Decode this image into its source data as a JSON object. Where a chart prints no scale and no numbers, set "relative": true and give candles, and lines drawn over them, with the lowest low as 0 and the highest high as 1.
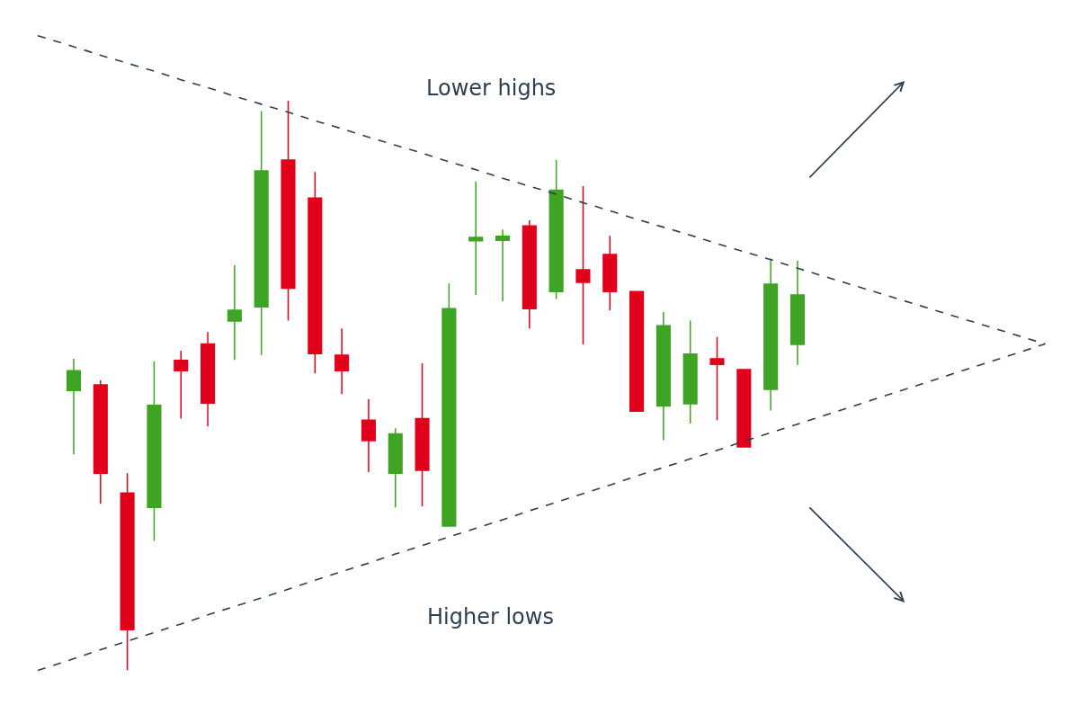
{
  "chart_data": {
    "type": "candlestick",
    "relative": true,
    "tick_labels": false,
    "categories": [
      null,
      null,
      null,
      null,
      null,
      null,
      null,
      null,
      null,
      null,
      null,
      null,
      null,
      null,
      null,
      null,
      null,
      null,
      null,
      null,
      null,
      null,
      null,
      null,
      null,
      null,
      null,
      null
    ],
    "ohlc": [
      [
        0.491,
        0.547,
        0.379,
        0.526
      ],
      [
        0.501,
        0.509,
        0.292,
        0.346
      ],
      [
        0.311,
        0.346,
        0.0,
        0.071
      ],
      [
        0.286,
        0.542,
        0.227,
        0.465
      ],
      [
        0.544,
        0.561,
        0.442,
        0.526
      ],
      [
        0.573,
        0.594,
        0.428,
        0.469
      ],
      [
        0.613,
        0.711,
        0.545,
        0.632
      ],
      [
        0.638,
        0.982,
        0.553,
        0.877
      ],
      [
        0.896,
        1.0,
        0.614,
        0.671
      ],
      [
        0.829,
        0.875,
        0.521,
        0.556
      ],
      [
        0.553,
        0.6,
        0.485,
        0.526
      ],
      [
        0.439,
        0.476,
        0.348,
        0.403
      ],
      [
        0.346,
        0.425,
        0.286,
        0.415
      ],
      [
        0.442,
        0.539,
        0.288,
        0.351
      ],
      [
        0.253,
        0.679,
        0.253,
        0.635
      ],
      [
        0.754,
        0.858,
        0.659,
        0.76
      ],
      [
        0.755,
        0.774,
        0.648,
        0.762
      ],
      [
        0.78,
        0.79,
        0.6,
        0.635
      ],
      [
        0.665,
        0.896,
        0.652,
        0.843
      ],
      [
        0.703,
        0.85,
        0.572,
        0.681
      ],
      [
        0.73,
        0.763,
        0.632,
        0.665
      ],
      [
        0.665,
        0.665,
        0.455,
        0.455
      ],
      [
        0.464,
        0.629,
        0.404,
        0.605
      ],
      [
        0.468,
        0.614,
        0.433,
        0.555
      ],
      [
        0.547,
        0.585,
        0.439,
        0.537
      ],
      [
        0.528,
        0.528,
        0.392,
        0.392
      ],
      [
        0.493,
        0.723,
        0.456,
        0.678
      ],
      [
        0.572,
        0.719,
        0.536,
        0.659
      ]
    ],
    "colors": [
      "#3fa324",
      "#e0001b",
      "#e0001b",
      "#3fa324",
      "#e0001b",
      "#e0001b",
      "#3fa324",
      "#3fa324",
      "#e0001b",
      "#e0001b",
      "#e0001b",
      "#e0001b",
      "#3fa324",
      "#e0001b",
      "#3fa324",
      "#3fa324",
      "#3fa324",
      "#e0001b",
      "#3fa324",
      "#e0001b",
      "#e0001b",
      "#e0001b",
      "#3fa324",
      "#3fa324",
      "#e0001b",
      "#e0001b",
      "#3fa324",
      "#3fa324"
    ],
    "series": [
      {
        "type": "line",
        "color": "#2e3e50",
        "line_style": "dashed",
        "values": [
          1.095,
          1.08,
          1.066,
          1.052,
          1.037,
          1.023,
          1.008,
          0.994,
          0.98,
          0.965,
          0.951,
          0.936,
          0.922,
          0.908,
          0.893,
          0.879,
          0.864,
          0.85,
          0.836,
          0.821,
          0.807,
          0.792,
          0.778,
          0.764,
          0.749,
          0.735,
          0.721,
          0.706
        ]
      },
      {
        "type": "line",
        "color": "#2e3e50",
        "line_style": "dashed",
        "values": [
          0.02,
          0.036,
          0.051,
          0.066,
          0.081,
          0.097,
          0.112,
          0.127,
          0.142,
          0.158,
          0.173,
          0.188,
          0.204,
          0.219,
          0.234,
          0.249,
          0.264,
          0.28,
          0.295,
          0.31,
          0.325,
          0.341,
          0.356,
          0.371,
          0.386,
          0.402,
          0.417,
          0.432
        ]
      }
    ],
    "annotations": [
      "Lower highs",
      "Higher lows"
    ]
  }
}
